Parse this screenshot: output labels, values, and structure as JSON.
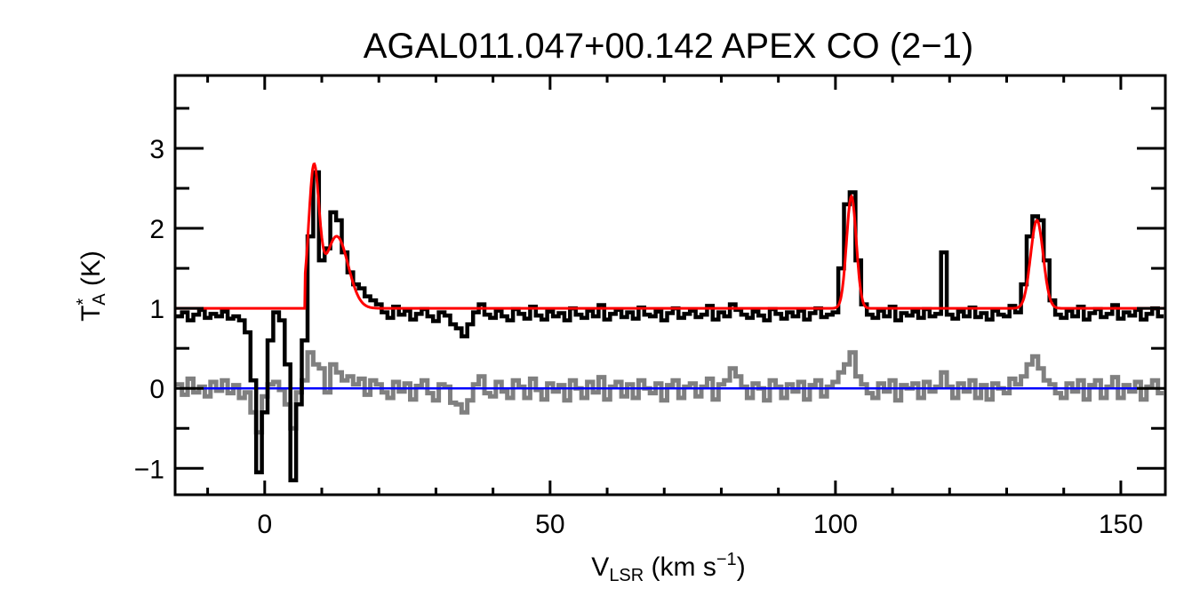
{
  "chart_data": {
    "type": "line",
    "title": "AGAL011.047+00.142  APEX CO (2−1)",
    "xlabel": {
      "main": "V",
      "sub": "LSR",
      "rest": " (km s",
      "sup": "−1",
      "end": ")"
    },
    "ylabel": {
      "main": "T",
      "sup": "*",
      "sub": "A",
      "rest": " (K)"
    },
    "xlim": [
      -15.7,
      157.8
    ],
    "ylim": [
      -1.33,
      3.91
    ],
    "x_ticks": [
      0,
      50,
      100,
      150
    ],
    "x_tick_labels": [
      "0",
      "50",
      "100",
      "150"
    ],
    "x_minor_step": 10,
    "y_ticks": [
      -1,
      0,
      1,
      2,
      3
    ],
    "y_tick_labels": [
      "−1",
      "0",
      "1",
      "2",
      "3"
    ],
    "y_minor_step": 0.5,
    "grid": false,
    "colors": {
      "spectrum": "#000000",
      "residual": "#808080",
      "fit": "#ff0000",
      "zero_line": "#0000ff"
    },
    "x_start": -15,
    "x_step": 1,
    "spectrum": [
      0.9,
      0.95,
      0.85,
      0.92,
      0.98,
      0.88,
      0.93,
      0.9,
      0.96,
      0.87,
      0.9,
      0.85,
      0.7,
      0.1,
      -1.05,
      -0.3,
      0.6,
      0.95,
      0.85,
      0.3,
      -1.15,
      -0.2,
      0.6,
      1.9,
      2.7,
      1.6,
      1.75,
      2.2,
      2.1,
      1.7,
      1.45,
      1.3,
      1.25,
      1.15,
      1.1,
      1.05,
      0.95,
      0.88,
      1.02,
      0.92,
      0.97,
      0.86,
      0.93,
      0.99,
      0.9,
      0.84,
      0.95,
      0.91,
      0.8,
      0.75,
      0.65,
      0.8,
      0.95,
      1.05,
      0.92,
      0.88,
      0.97,
      0.9,
      0.85,
      0.99,
      0.93,
      0.87,
      1.02,
      0.91,
      0.86,
      0.96,
      0.9,
      0.94,
      0.85,
      1.0,
      0.92,
      0.88,
      0.97,
      0.9,
      1.04,
      0.86,
      0.93,
      0.98,
      0.89,
      0.95,
      0.87,
      1.01,
      0.92,
      0.9,
      0.96,
      0.85,
      0.94,
      1.0,
      0.88,
      0.93,
      0.97,
      0.89,
      0.92,
      1.03,
      0.86,
      0.95,
      0.9,
      1.05,
      0.98,
      0.92,
      0.88,
      0.96,
      0.91,
      0.85,
      0.99,
      0.93,
      0.87,
      0.95,
      0.9,
      0.97,
      0.86,
      0.94,
      1.0,
      0.89,
      0.92,
      0.95,
      1.5,
      2.3,
      2.45,
      1.6,
      1.05,
      0.92,
      0.88,
      0.97,
      0.9,
      1.02,
      0.85,
      0.94,
      0.91,
      0.96,
      0.88,
      0.99,
      0.9,
      0.93,
      1.7,
      0.92,
      0.87,
      0.96,
      0.9,
      1.01,
      0.89,
      0.94,
      0.86,
      0.97,
      0.92,
      0.9,
      1.03,
      0.95,
      1.3,
      1.9,
      2.15,
      2.1,
      1.6,
      1.1,
      0.92,
      0.88,
      0.97,
      0.9,
      1.02,
      0.86,
      0.94,
      0.99,
      0.89,
      0.93,
      1.04,
      0.87,
      0.95,
      0.91,
      0.98,
      0.86,
      0.93,
      1.0,
      0.9
    ],
    "residual": [
      0.05,
      -0.08,
      0.12,
      -0.05,
      0.02,
      -0.1,
      0.08,
      -0.03,
      0.1,
      -0.06,
      0.04,
      -0.12,
      -0.05,
      -0.3,
      -0.55,
      -0.1,
      0.05,
      0.08,
      -0.02,
      -0.2,
      -0.5,
      -0.05,
      0.1,
      0.45,
      0.3,
      0.25,
      -0.05,
      0.3,
      0.2,
      0.1,
      0.15,
      0.05,
      0.12,
      -0.08,
      0.1,
      0.05,
      -0.05,
      -0.12,
      0.08,
      -0.04,
      0.06,
      -0.14,
      0.03,
      0.1,
      -0.06,
      -0.15,
      0.05,
      0.02,
      -0.18,
      -0.2,
      -0.3,
      -0.15,
      0.05,
      0.15,
      -0.06,
      -0.1,
      0.08,
      -0.04,
      -0.12,
      0.1,
      0.02,
      -0.12,
      0.12,
      -0.02,
      -0.14,
      0.06,
      -0.04,
      0.04,
      -0.15,
      0.1,
      0.0,
      -0.12,
      0.08,
      -0.05,
      0.14,
      -0.14,
      0.02,
      0.08,
      -0.1,
      0.05,
      -0.12,
      0.1,
      0.0,
      -0.06,
      0.06,
      -0.15,
      0.04,
      0.1,
      -0.12,
      0.02,
      0.06,
      -0.1,
      0.02,
      0.12,
      -0.14,
      0.05,
      0.1,
      0.25,
      0.15,
      0.02,
      -0.12,
      0.06,
      0.0,
      -0.15,
      0.1,
      0.02,
      -0.12,
      0.05,
      -0.04,
      0.08,
      -0.14,
      0.04,
      0.1,
      -0.1,
      0.02,
      0.08,
      0.2,
      0.3,
      0.45,
      0.15,
      0.05,
      -0.06,
      -0.12,
      0.06,
      -0.04,
      0.1,
      -0.15,
      0.04,
      0.0,
      0.06,
      -0.12,
      0.08,
      -0.04,
      0.02,
      0.2,
      0.02,
      -0.12,
      0.06,
      -0.04,
      0.1,
      -0.12,
      0.04,
      -0.14,
      0.06,
      0.0,
      -0.06,
      0.12,
      0.05,
      0.15,
      0.3,
      0.4,
      0.25,
      0.1,
      0.05,
      -0.06,
      -0.12,
      0.06,
      -0.04,
      0.1,
      -0.14,
      0.04,
      0.1,
      -0.12,
      0.02,
      0.14,
      -0.12,
      0.04,
      -0.04,
      0.08,
      -0.14,
      0.02,
      0.1,
      -0.06
    ],
    "fit": {
      "baseline": 1.0,
      "window": [
        7.0,
        140.0
      ],
      "components": [
        {
          "center": 8.6,
          "amplitude": 1.68,
          "sigma": 0.9
        },
        {
          "center": 12.6,
          "amplitude": 0.9,
          "sigma": 2.0
        },
        {
          "center": 102.8,
          "amplitude": 1.4,
          "sigma": 0.85
        },
        {
          "center": 135.3,
          "amplitude": 1.1,
          "sigma": 1.1
        }
      ]
    },
    "zero_line": 0
  }
}
